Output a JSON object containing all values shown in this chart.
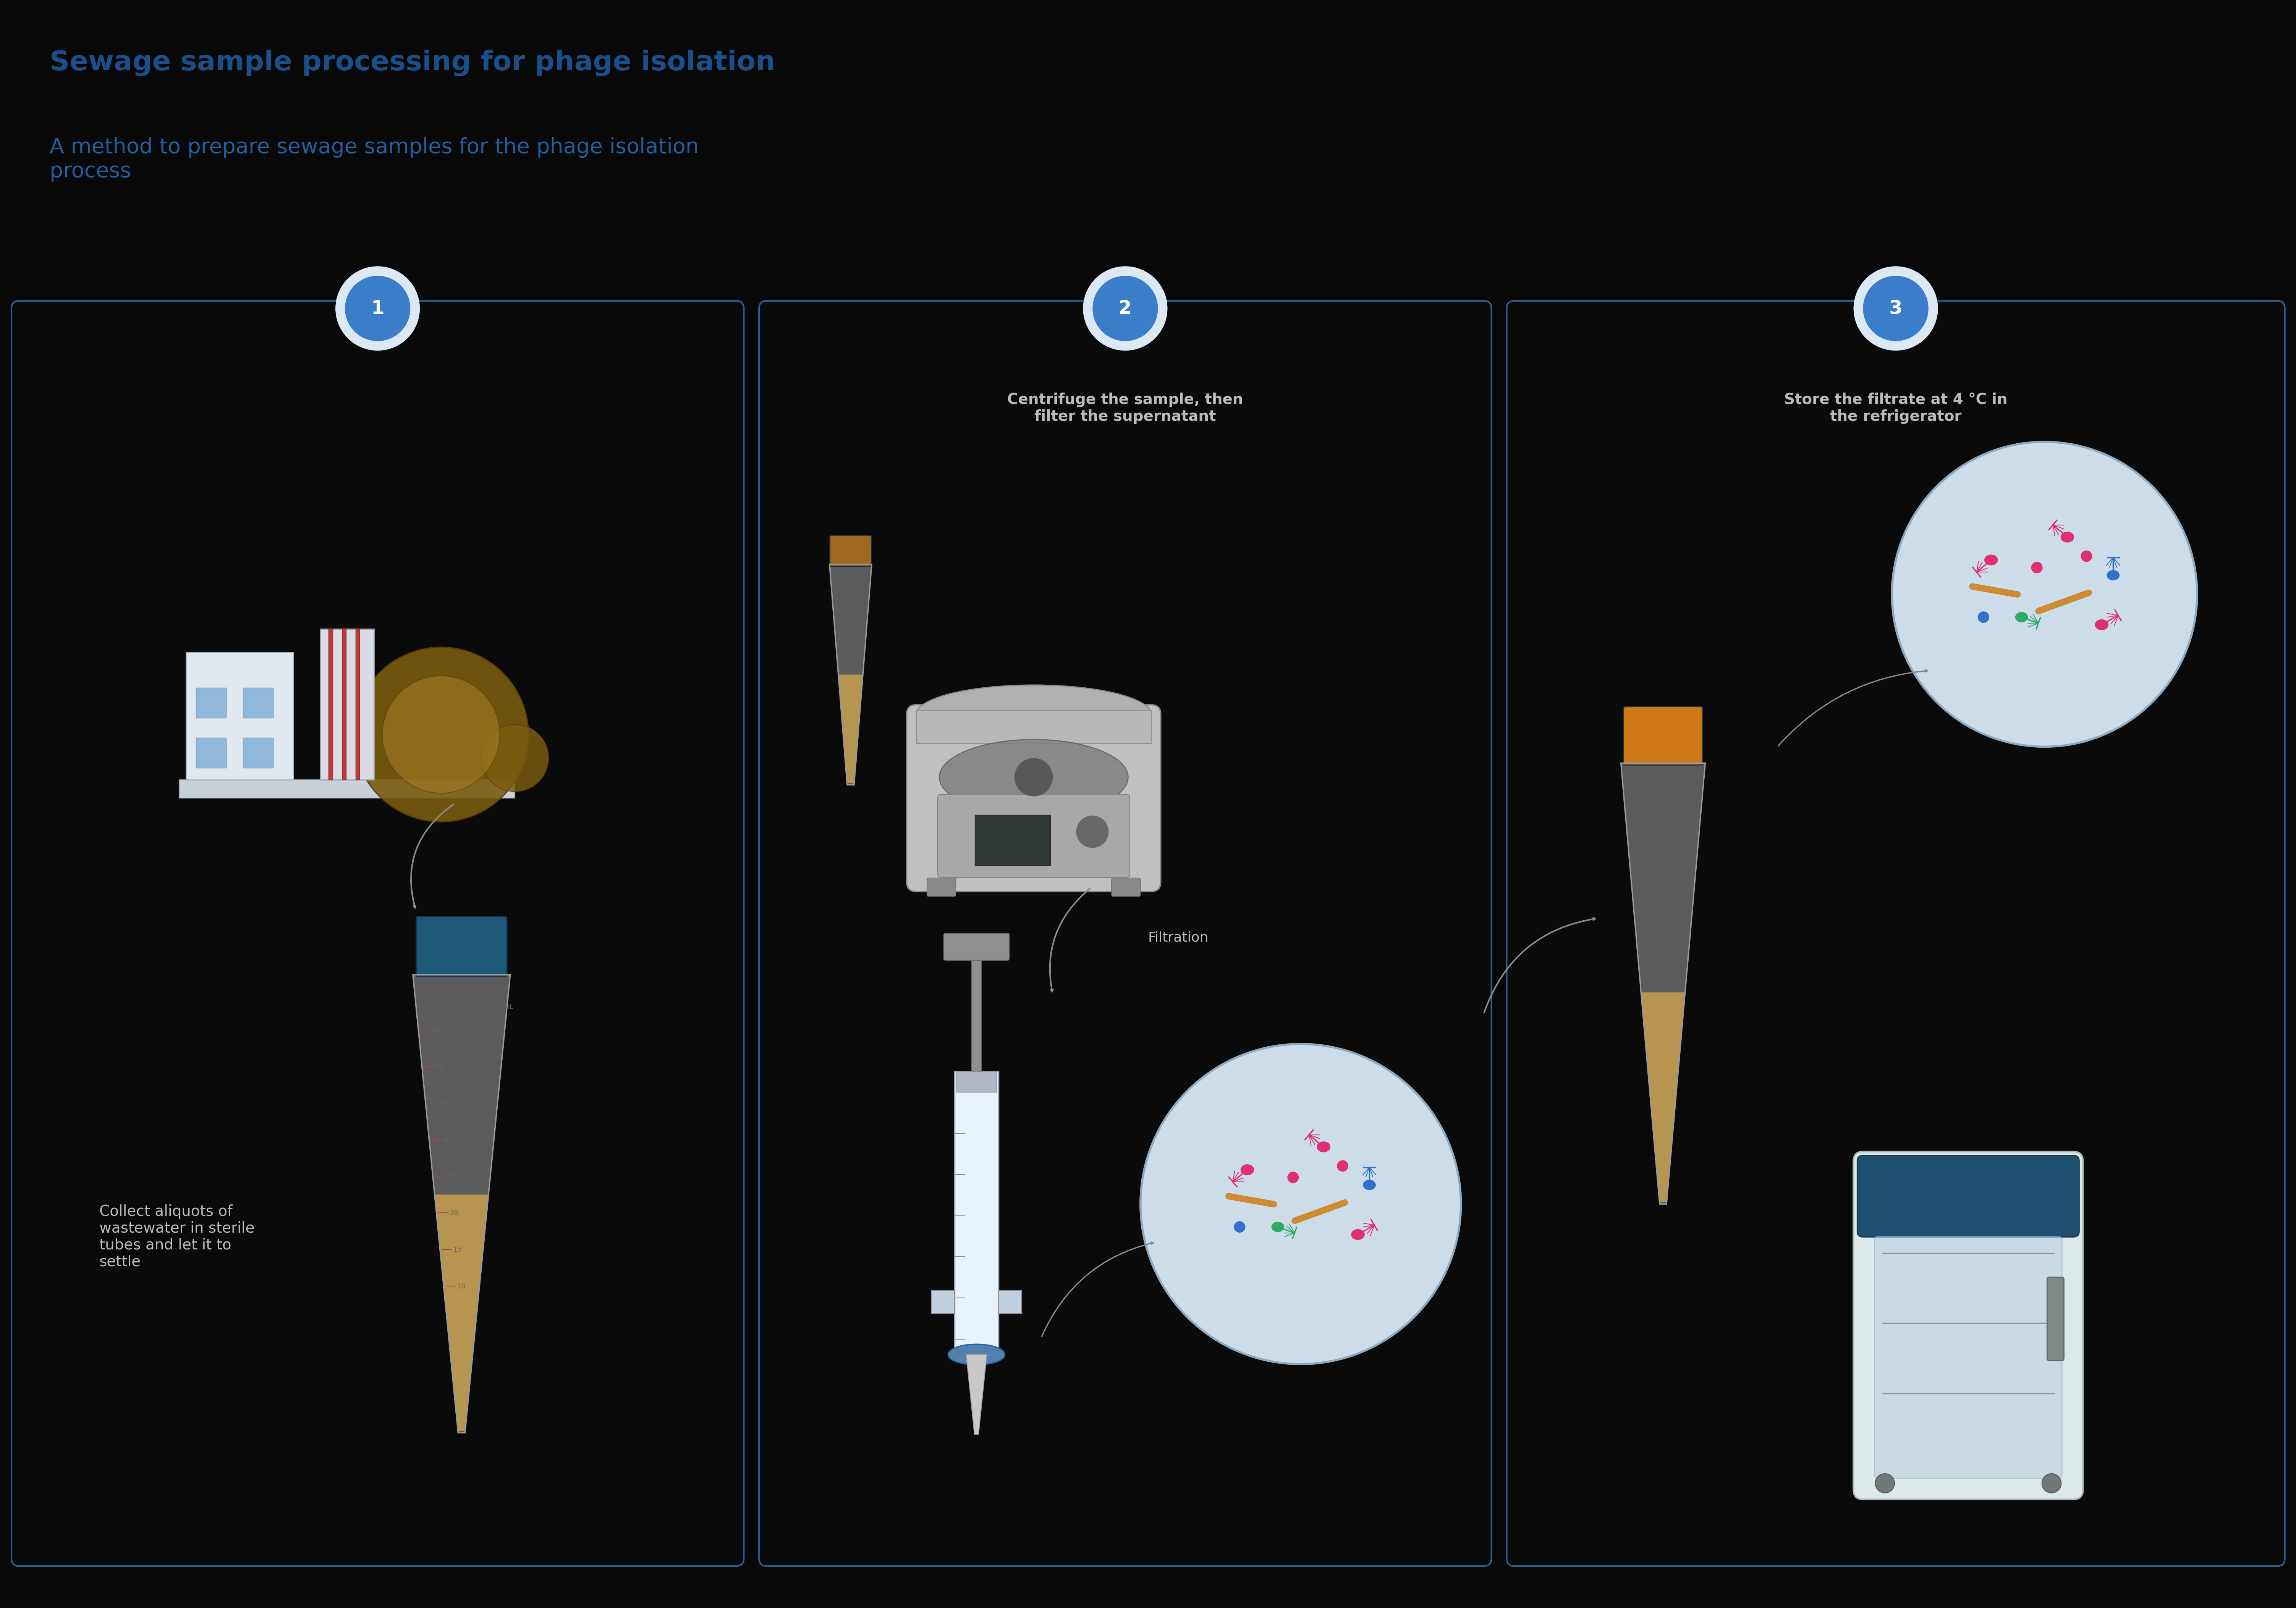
{
  "background_color": "#080808",
  "title_bold": "Sewage sample processing for phage isolation",
  "title_sub": "A method to prepare sewage samples for the phage isolation\nprocess",
  "title_color_bold": "#1a4f8a",
  "title_color_sub": "#2060a0",
  "title_fontsize_bold": 52,
  "title_fontsize_sub": 40,
  "panel_border_color": "#2a6090",
  "panel_bg_color": "#0a0a0a",
  "step_circle_color": "#3a7dc9",
  "step_circle_outer": "#dce8f4",
  "step_text_color": "#ffffff",
  "step1_label": "Collect aliquots of\nwastewater in sterile\ntubes and let it to\nsettle",
  "step2_label": "Centrifuge the sample, then\nfilter the supernatant",
  "step3_label": "Store the filtrate at 4 °C in\nthe refrigerator",
  "filtration_label": "Filtration",
  "label_color": "#bbbbbb",
  "label_fontsize": 28,
  "arrow_color": "#888888"
}
